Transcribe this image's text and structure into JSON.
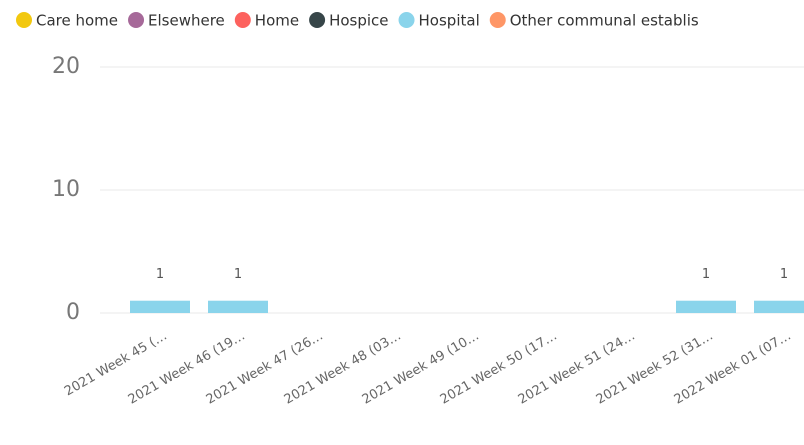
{
  "chart_data": {
    "type": "stacked_bar",
    "categories": [
      "2021 Week 45 (…",
      "2021 Week 46 (19…",
      "2021 Week 47 (26…",
      "2021 Week 48 (03…",
      "2021 Week 49 (10…",
      "2021 Week 50 (17…",
      "2021 Week 51 (24…",
      "2021 Week 52 (31…",
      "2022 Week 01 (07…"
    ],
    "series": [
      {
        "name": "Care home",
        "color": "#F2C80F",
        "values": [
          null,
          null,
          null,
          null,
          null,
          null,
          null,
          null,
          null
        ]
      },
      {
        "name": "Elsewhere",
        "color": "#A66999",
        "values": [
          null,
          null,
          null,
          null,
          null,
          null,
          null,
          null,
          null
        ]
      },
      {
        "name": "Home",
        "color": "#FD625E",
        "values": [
          null,
          null,
          null,
          null,
          null,
          null,
          null,
          null,
          null
        ]
      },
      {
        "name": "Hospice",
        "color": "#374649",
        "values": [
          null,
          null,
          null,
          null,
          null,
          null,
          null,
          null,
          null
        ]
      },
      {
        "name": "Hospital",
        "color": "#8AD4EB",
        "values": [
          1,
          1,
          null,
          null,
          null,
          null,
          null,
          1,
          1
        ]
      },
      {
        "name": "Other communal establis",
        "color": "#FE9666",
        "values": [
          null,
          null,
          null,
          null,
          null,
          null,
          null,
          null,
          null
        ]
      }
    ],
    "ylim": [
      0,
      20
    ],
    "yticks": [
      0,
      10,
      20
    ],
    "grid": true
  }
}
